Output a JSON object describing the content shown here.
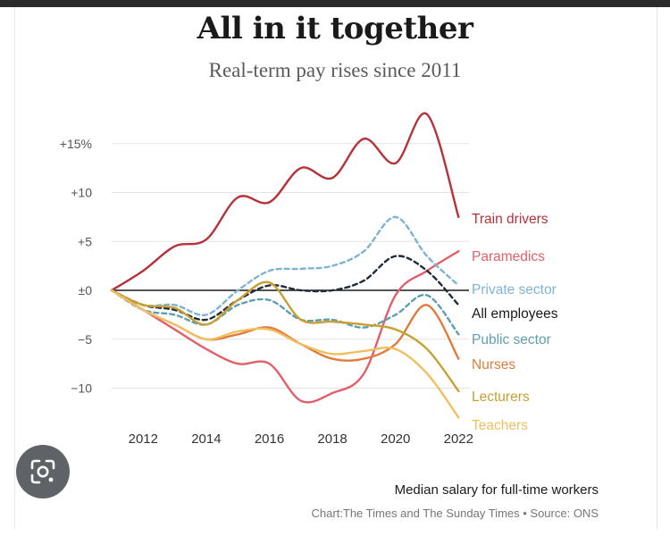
{
  "header": {
    "title": "All in it together",
    "subtitle": "Real-term pay rises since 2011"
  },
  "footer": {
    "note": "Median salary for full-time workers",
    "credit": "Chart:The Times and The Sunday Times • Source: ONS"
  },
  "lens_button": {
    "icon": "lens-search-icon"
  },
  "chart_data": {
    "type": "line",
    "title": "All in it together",
    "subtitle": "Real-term pay rises since 2011",
    "xlim": [
      2011,
      2022
    ],
    "ylim": [
      -13,
      18
    ],
    "x_ticks": [
      2012,
      2014,
      2016,
      2018,
      2020,
      2022
    ],
    "x_tick_labels": [
      "2012",
      "2014",
      "2016",
      "2018",
      "2020",
      "2022"
    ],
    "y_ticks": [
      15,
      10,
      5,
      0,
      -5,
      -10
    ],
    "y_tick_labels": [
      "+15%",
      "+10",
      "+5",
      "±0",
      "−5",
      "−10"
    ],
    "grid": "horizontal",
    "legend": "direct labels at right end of lines",
    "series": [
      {
        "name": "Train drivers",
        "color": "#b5323a",
        "dashed": false,
        "x": [
          2011,
          2012,
          2013,
          2014,
          2015,
          2016,
          2017,
          2018,
          2019,
          2020,
          2021,
          2022
        ],
        "values": [
          0,
          2,
          4.5,
          5.2,
          9.5,
          9,
          12.5,
          11.5,
          15.5,
          13,
          18,
          7.5
        ]
      },
      {
        "name": "Paramedics",
        "color": "#e0606a",
        "dashed": false,
        "x": [
          2011,
          2012,
          2013,
          2014,
          2015,
          2016,
          2017,
          2018,
          2019,
          2020,
          2021,
          2022
        ],
        "values": [
          0,
          -2,
          -4,
          -6,
          -7.5,
          -7.5,
          -11.3,
          -10.5,
          -8.5,
          -0.5,
          2,
          4
        ]
      },
      {
        "name": "Private sector",
        "color": "#7fb3d3",
        "dashed": true,
        "x": [
          2011,
          2012,
          2013,
          2014,
          2015,
          2016,
          2017,
          2018,
          2019,
          2020,
          2021,
          2022
        ],
        "values": [
          0,
          -1.5,
          -1.5,
          -2.5,
          0,
          2,
          2.2,
          2.5,
          4,
          7.5,
          3.5,
          0.5
        ]
      },
      {
        "name": "All employees",
        "color": "#222b38",
        "dashed": true,
        "x": [
          2011,
          2012,
          2013,
          2014,
          2015,
          2016,
          2017,
          2018,
          2019,
          2020,
          2021,
          2022
        ],
        "values": [
          0,
          -1.5,
          -2,
          -3,
          -1,
          0.5,
          0,
          0,
          1,
          3.5,
          2,
          -1.5
        ]
      },
      {
        "name": "Public sector",
        "color": "#5c9fb0",
        "dashed": true,
        "x": [
          2011,
          2012,
          2013,
          2014,
          2015,
          2016,
          2017,
          2018,
          2019,
          2020,
          2021,
          2022
        ],
        "values": [
          0,
          -2,
          -2.5,
          -3.5,
          -1.5,
          -1,
          -3,
          -3,
          -3.8,
          -2.5,
          -0.5,
          -4.5
        ]
      },
      {
        "name": "Nurses",
        "color": "#e07b3c",
        "dashed": false,
        "x": [
          2011,
          2012,
          2013,
          2014,
          2015,
          2016,
          2017,
          2018,
          2019,
          2020,
          2021,
          2022
        ],
        "values": [
          0,
          -2,
          -3.5,
          -5,
          -4.5,
          -3.8,
          -5.5,
          -7,
          -7,
          -5.5,
          -1.5,
          -7
        ]
      },
      {
        "name": "Lecturers",
        "color": "#c8a032",
        "dashed": false,
        "x": [
          2011,
          2012,
          2013,
          2014,
          2015,
          2016,
          2017,
          2018,
          2019,
          2020,
          2021,
          2022
        ],
        "values": [
          0,
          -1.5,
          -1.8,
          -3.5,
          -1,
          0.8,
          -3,
          -3.2,
          -3.5,
          -4,
          -6,
          -10.3
        ]
      },
      {
        "name": "Teachers",
        "color": "#f0c060",
        "dashed": false,
        "x": [
          2011,
          2012,
          2013,
          2014,
          2015,
          2016,
          2017,
          2018,
          2019,
          2020,
          2021,
          2022
        ],
        "values": [
          0,
          -2,
          -3.5,
          -5,
          -4.2,
          -4,
          -5.5,
          -6.5,
          -6.2,
          -6,
          -8.5,
          -13
        ]
      }
    ]
  }
}
